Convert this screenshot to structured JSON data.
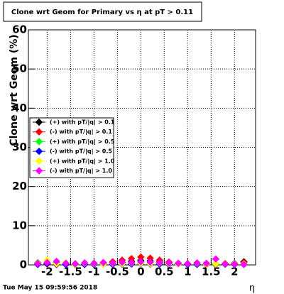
{
  "chart_data": {
    "type": "scatter",
    "title": "Clone wrt Geom for Primary vs  η at pT > 0.11",
    "y_label": "Clone wrt Geom (%)",
    "x_label": "η",
    "footer": "Tue May 15 09:59:56 2018",
    "x": [
      -2.2,
      -2,
      -1.8,
      -1.6,
      -1.4,
      -1.2,
      -1,
      -0.8,
      -0.6,
      -0.4,
      -0.2,
      0,
      0.2,
      0.4,
      0.6,
      0.8,
      1,
      1.2,
      1.4,
      1.6,
      1.8,
      2,
      2.2
    ],
    "series": [
      {
        "name": "(+) with pT/|q| > 0.1",
        "color": "#000000",
        "values": [
          0.5,
          0.3,
          0.2,
          0.1,
          0.2,
          0.1,
          0.2,
          0.3,
          0.4,
          0.6,
          0.9,
          1.1,
          1.0,
          0.7,
          0.4,
          0.3,
          0.2,
          0.2,
          0.1,
          0.2,
          0.3,
          0.4,
          0.8
        ]
      },
      {
        "name": "(-) with pT/|q| > 0.1",
        "color": "#ff0000",
        "values": [
          0.3,
          0.2,
          0.1,
          0.2,
          0.1,
          0.2,
          0.3,
          0.5,
          0.8,
          1.2,
          1.6,
          2.0,
          1.7,
          1.2,
          0.7,
          0.4,
          0.2,
          0.2,
          0.1,
          0.1,
          0.2,
          0.3,
          0.6
        ]
      },
      {
        "name": "(+) with pT/|q| > 0.5",
        "color": "#00ff00",
        "values": [
          0.2,
          0.4,
          0.6,
          0.3,
          0.1,
          0.2,
          0.1,
          0.2,
          0.3,
          0.2,
          0.3,
          0.4,
          0.3,
          0.2,
          0.3,
          0.2,
          0.1,
          0.2,
          0.3,
          0.2,
          0.4,
          0.3,
          0.2
        ]
      },
      {
        "name": "(-) with pT/|q| > 0.5",
        "color": "#0000ff",
        "values": [
          0.1,
          0.3,
          0.2,
          0.1,
          0.2,
          0.1,
          0.1,
          0.2,
          0.1,
          0.2,
          0.2,
          0.3,
          0.2,
          0.2,
          0.1,
          0.2,
          0.1,
          0.1,
          0.2,
          0.3,
          0.2,
          0.1,
          0.1
        ]
      },
      {
        "name": "(+) with pT/|q| > 1.0",
        "color": "#ffff00",
        "values": [
          0.4,
          1.2,
          0.3,
          0.5,
          0.2,
          0.4,
          0.3,
          0.2,
          0.4,
          0.3,
          0.5,
          0.4,
          0.3,
          0.5,
          0.3,
          0.2,
          0.3,
          0.4,
          0.2,
          0.3,
          0.4,
          0.3,
          0.2
        ]
      },
      {
        "name": "(-) with pT/|q| > 1.0",
        "color": "#ff00ff",
        "values": [
          0.3,
          0.6,
          0.9,
          0.4,
          0.3,
          0.5,
          0.4,
          0.6,
          0.5,
          0.7,
          0.6,
          0.8,
          0.7,
          0.6,
          0.5,
          0.4,
          0.3,
          0.5,
          0.4,
          1.5,
          0.3,
          0.2,
          0.1
        ]
      }
    ],
    "xlim": [
      -2.4,
      2.45
    ],
    "xticks": [
      -2,
      -1.5,
      -1,
      -0.5,
      0,
      0.5,
      1,
      1.5,
      2
    ],
    "ylim": [
      0,
      60
    ],
    "yticks": [
      0,
      10,
      20,
      30,
      40,
      50,
      60
    ],
    "grid": true,
    "legend": "center-left"
  }
}
